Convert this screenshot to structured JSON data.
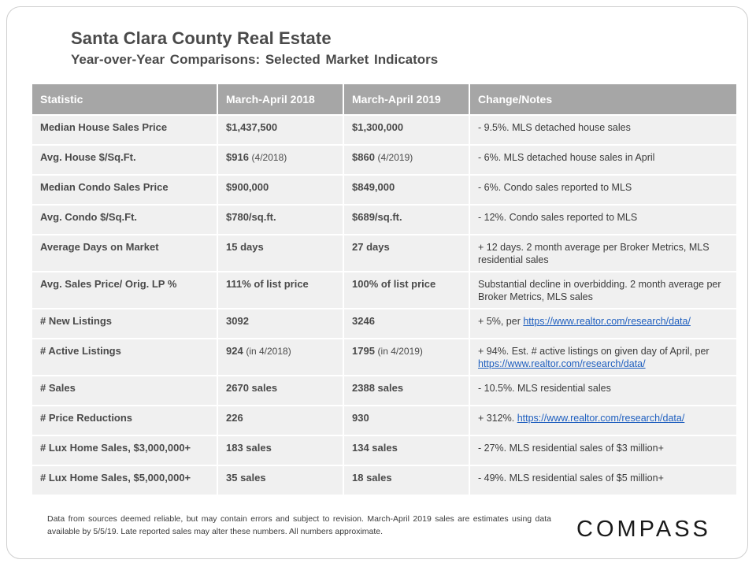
{
  "header": {
    "title": "Santa Clara County Real Estate",
    "subtitle": "Year-over-Year  Comparisons:  Selected Market Indicators"
  },
  "table": {
    "columns": [
      "Statistic",
      "March-April  2018",
      "March-April  2019",
      "Change/Notes"
    ],
    "rows": [
      {
        "stat": "Median House Sales Price",
        "v2018": "$1,437,500",
        "v2018_note": "",
        "v2019": "$1,300,000",
        "v2019_note": "",
        "notes": "- 9.5%. MLS detached house sales",
        "link": ""
      },
      {
        "stat": "Avg. House $/Sq.Ft.",
        "v2018": "$916",
        "v2018_note": "(4/2018)",
        "v2019": "$860",
        "v2019_note": "(4/2019)",
        "notes": "- 6%. MLS detached house sales in April",
        "link": ""
      },
      {
        "stat": "Median Condo Sales Price",
        "v2018": "$900,000",
        "v2018_note": "",
        "v2019": "$849,000",
        "v2019_note": "",
        "notes": "- 6%. Condo sales reported to MLS",
        "link": ""
      },
      {
        "stat": "Avg. Condo $/Sq.Ft.",
        "v2018": "$780/sq.ft.",
        "v2018_note": "",
        "v2019": "$689/sq.ft.",
        "v2019_note": "",
        "notes": "- 12%. Condo sales reported to MLS",
        "link": ""
      },
      {
        "stat": "Average Days on Market",
        "v2018": "15 days",
        "v2018_note": "",
        "v2019": "27 days",
        "v2019_note": "",
        "notes": "+ 12 days. 2 month average per Broker Metrics, MLS residential sales",
        "link": ""
      },
      {
        "stat": "Avg. Sales Price/ Orig. LP %",
        "v2018": "111% of list price",
        "v2018_note": "",
        "v2019": "100% of list price",
        "v2019_note": "",
        "notes": "Substantial decline in overbidding. 2 month average per Broker Metrics, MLS sales",
        "link": ""
      },
      {
        "stat": "# New Listings",
        "v2018": "3092",
        "v2018_note": "",
        "v2019": "3246",
        "v2019_note": "",
        "notes": "+ 5%, per",
        "link": "https://www.realtor.com/research/data/"
      },
      {
        "stat": "# Active Listings",
        "v2018": "924",
        "v2018_note": "(in 4/2018)",
        "v2019": "1795",
        "v2019_note": "(in 4/2019)",
        "notes": "+ 94%. Est. # active listings on given day of April, per",
        "link": "https://www.realtor.com/research/data/"
      },
      {
        "stat": "# Sales",
        "v2018": "2670 sales",
        "v2018_note": "",
        "v2019": "2388 sales",
        "v2019_note": "",
        "notes": "- 10.5%. MLS residential sales",
        "link": ""
      },
      {
        "stat": "# Price Reductions",
        "v2018": "226",
        "v2018_note": "",
        "v2019": "930",
        "v2019_note": "",
        "notes": "+ 312%.",
        "link": "https://www.realtor.com/research/data/"
      },
      {
        "stat": "# Lux Home Sales, $3,000,000+",
        "v2018": "183 sales",
        "v2018_note": "",
        "v2019": "134 sales",
        "v2019_note": "",
        "notes": "- 27%. MLS residential sales of $3 million+",
        "link": ""
      },
      {
        "stat": "# Lux Home Sales, $5,000,000+",
        "v2018": "35 sales",
        "v2018_note": "",
        "v2019": "18 sales",
        "v2019_note": "",
        "notes": "- 49%. MLS residential sales of $5 million+",
        "link": ""
      }
    ]
  },
  "footer": {
    "disclaimer": "Data from sources deemed reliable, but may contain errors and subject to revision. March-April 2019 sales are estimates using data available  by 5/5/19. Late reported sales may alter these numbers. All numbers approximate.",
    "logo": "COMPASS"
  }
}
